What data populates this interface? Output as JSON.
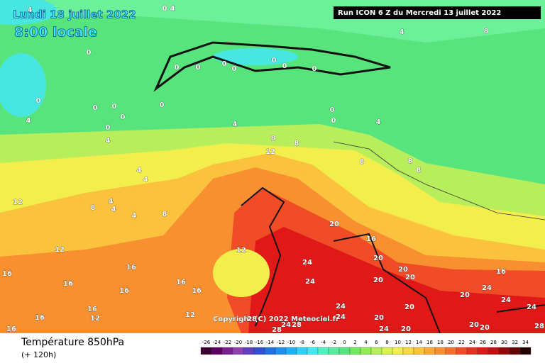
{
  "header": {
    "date": "Lundi 18 juillet 2022",
    "time": "8:00 locale",
    "run": "Run ICON 6 Z du Mercredi 13 juillet 2022"
  },
  "copyright": "Copyright (C) 2022 Meteociel.fr",
  "legend": {
    "title": "Température 850hPa",
    "lead": "(+ 120h)",
    "scale": [
      -26,
      -24,
      -22,
      -20,
      -18,
      -16,
      -14,
      -12,
      -10,
      -8,
      -6,
      -4,
      -2,
      0,
      2,
      4,
      6,
      8,
      10,
      12,
      14,
      16,
      18,
      20,
      22,
      24,
      26,
      28,
      30,
      32,
      34
    ]
  },
  "map": {
    "contour_labels": [
      4,
      0,
      4,
      4,
      8,
      0,
      0,
      0,
      0,
      0,
      0,
      0,
      0,
      0,
      0,
      0,
      0,
      0,
      0,
      0,
      0,
      4,
      4,
      4,
      4,
      8,
      12,
      8,
      8,
      8,
      8,
      4,
      4,
      8,
      4,
      4,
      4,
      8,
      12,
      12,
      12,
      20,
      16,
      16,
      16,
      16,
      16,
      16,
      16,
      16,
      16,
      16,
      12,
      12,
      24,
      24,
      24,
      24,
      20,
      20,
      20,
      20,
      20,
      20,
      24,
      20,
      16,
      20,
      24,
      24,
      20,
      20,
      24,
      28,
      24,
      28,
      28,
      28
    ]
  }
}
